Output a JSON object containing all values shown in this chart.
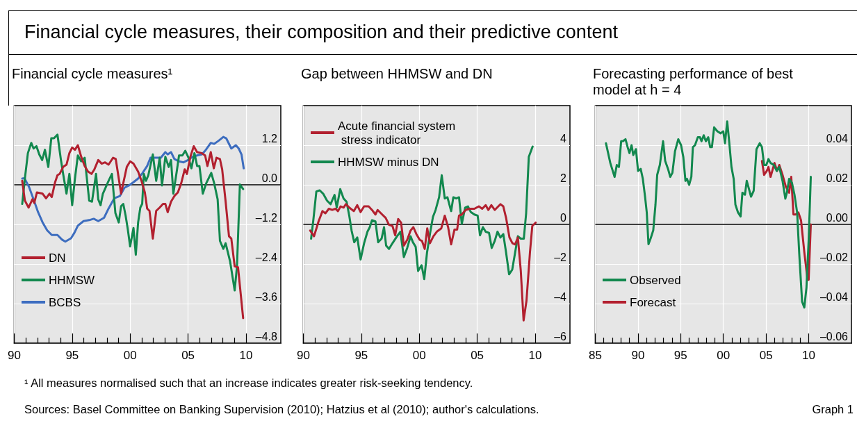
{
  "chart_data": [
    {
      "type": "line",
      "title": "Financial cycle measures, their composition and their predictive content",
      "subtitle": "Financial cycle measures¹",
      "annotations": [
        "¹  All measures normalised such that an increase indicates greater risk-seeking tendency.",
        "Sources: Basel Committee on Banking Supervision (2010); Hatzius et al (2010); author's calculations.",
        "Graph 1"
      ],
      "xlim": [
        1990,
        2013
      ],
      "xticks": [
        {
          "value": 1990,
          "label": "90"
        },
        {
          "value": 1991,
          "label": null
        },
        {
          "value": 1992,
          "label": null
        },
        {
          "value": 1993,
          "label": null
        },
        {
          "value": 1994,
          "label": null
        },
        {
          "value": 1995,
          "label": "95"
        },
        {
          "value": 1996,
          "label": null
        },
        {
          "value": 1997,
          "label": null
        },
        {
          "value": 1998,
          "label": null
        },
        {
          "value": 1999,
          "label": null
        },
        {
          "value": 2000,
          "label": "00"
        },
        {
          "value": 2001,
          "label": null
        },
        {
          "value": 2002,
          "label": null
        },
        {
          "value": 2003,
          "label": null
        },
        {
          "value": 2004,
          "label": null
        },
        {
          "value": 2005,
          "label": "05"
        },
        {
          "value": 2006,
          "label": null
        },
        {
          "value": 2007,
          "label": null
        },
        {
          "value": 2008,
          "label": null
        },
        {
          "value": 2009,
          "label": null
        },
        {
          "value": 2010,
          "label": "10"
        }
      ],
      "ylim": [
        -4.8,
        2.4
      ],
      "yticks": [
        {
          "value": -4.8,
          "label": "–4.8"
        },
        {
          "value": -3.6,
          "label": "–3.6"
        },
        {
          "value": -2.4,
          "label": "–2.4"
        },
        {
          "value": -1.2,
          "label": "–1.2"
        },
        {
          "value": 0,
          "label": "0.0"
        },
        1.2
      ],
      "grid": true,
      "legend": "bottom left",
      "marker": "none",
      "line_style": "solid",
      "ref_lines": [
        {
          "axis": "y",
          "value": 0,
          "color": "#000000"
        }
      ],
      "series": [
        {
          "name": "DN",
          "color": "#b2202f",
          "x": [
            1990.69,
            1990.92,
            1991.24,
            1991.57,
            1991.73,
            1991.96,
            1992.45,
            1992.75,
            1993.04,
            1993.24,
            1993.53,
            1993.73,
            1993.92,
            1994.22,
            1994.51,
            1994.76,
            1995,
            1995.24,
            1995.49,
            1995.78,
            1996.08,
            1996.37,
            1996.67,
            1996.92,
            1997.25,
            1997.55,
            1997.84,
            1998.14,
            1998.53,
            1998.76,
            1999.02,
            1999.22,
            1999.41,
            1999.71,
            2000,
            2000.29,
            2000.69,
            2000.98,
            2001.27,
            2001.47,
            2001.67,
            2001.96,
            2002.25,
            2002.55,
            2002.84,
            2003.04,
            2003.24,
            2003.53,
            2003.82,
            2004.12,
            2004.41,
            2004.71,
            2004.9,
            2005.2,
            2005.49,
            2005.78,
            2006.18,
            2006.47,
            2006.67,
            2006.96,
            2007.22,
            2007.45,
            2007.75,
            2007.94,
            2008.24,
            2008.53,
            2008.73,
            2009.02,
            2009.31,
            2009.75
          ],
          "values": [
            0.12,
            -0.48,
            -0.69,
            -0.44,
            -0.55,
            -0.23,
            -0.27,
            -0.41,
            -0.27,
            -0.37,
            0.08,
            0.29,
            0.33,
            0.54,
            0.61,
            0.96,
            1.13,
            1.06,
            1.2,
            0.85,
            0.57,
            0.4,
            0.33,
            0.47,
            0.75,
            0.64,
            0.68,
            0.61,
            0.82,
            0.78,
            0.19,
            -0.27,
            0.05,
            0.54,
            0.71,
            0.64,
            0.4,
            0.12,
            -0.23,
            -0.72,
            -0.79,
            -1.63,
            -0.79,
            -0.69,
            -0.58,
            -0.58,
            -0.83,
            -0.51,
            -0.34,
            -0.23,
            0.05,
            0.47,
            0.33,
            0.85,
            1.17,
            0.99,
            0.96,
            0.89,
            0.57,
            0.99,
            0.5,
            0.82,
            0.78,
            0.47,
            -0.51,
            -1.56,
            -1.63,
            -2.47,
            -2.5,
            -4.04
          ]
        },
        {
          "name": "HHMSW",
          "color": "#12884e",
          "x": [
            1990.69,
            1990.92,
            1991.18,
            1991.47,
            1991.67,
            1991.92,
            1992.16,
            1992.41,
            1992.65,
            1992.94,
            1993.2,
            1993.43,
            1993.73,
            1994.02,
            1994.22,
            1994.51,
            1994.76,
            1995,
            1995.24,
            1995.49,
            1995.78,
            1996.08,
            1996.47,
            1996.71,
            1997.06,
            1997.25,
            1997.45,
            1997.65,
            1998.14,
            1998.43,
            1998.73,
            1999.02,
            1999.22,
            1999.41,
            1999.61,
            1999.8,
            2000,
            2000.29,
            2000.49,
            2000.69,
            2000.88,
            2001.04,
            2001.18,
            2001.37,
            2001.57,
            2001.96,
            2002.25,
            2002.55,
            2002.75,
            2003.04,
            2003.33,
            2003.53,
            2003.73,
            2004.02,
            2004.22,
            2004.51,
            2004.76,
            2005.04,
            2005.29,
            2005.55,
            2005.78,
            2005.98,
            2006.27,
            2006.57,
            2007,
            2007.25,
            2007.55,
            2007.75,
            2008.04,
            2008.24,
            2008.63,
            2009.02,
            2009.22,
            2009.47,
            2009.75
          ],
          "values": [
            -0.58,
            0.19,
            0.96,
            1.27,
            1.1,
            1.17,
            0.92,
            0.75,
            1.06,
            0.54,
            1.41,
            1.41,
            1.52,
            0.78,
            0.33,
            -0.27,
            0.33,
            -0.62,
            0.19,
            0.89,
            0.71,
            0.82,
            -0.48,
            -0.51,
            0.33,
            -0.44,
            -0.62,
            -0.27,
            0.12,
            0.33,
            -0.86,
            -1.14,
            -0.65,
            -0.58,
            -0.93,
            -1.35,
            -1.87,
            -1.31,
            -2.12,
            -1.14,
            -0.69,
            -0.58,
            0.33,
            0.12,
            0.29,
            0.92,
            0.12,
            0.82,
            -0.02,
            0.85,
            0.54,
            0.75,
            -0.27,
            0.4,
            0.89,
            0.89,
            1.03,
            0.82,
            0.5,
            0.96,
            0.57,
            0.57,
            -0.27,
            0.05,
            0.36,
            0.05,
            -0.44,
            -1.7,
            -1.94,
            -1.77,
            -2.33,
            -3.2,
            -2.47,
            0.01,
            -0.13
          ]
        },
        {
          "name": "BCBS",
          "color": "#3d6dbf",
          "x": [
            1990.69,
            1990.88,
            1991.27,
            1991.67,
            1992.06,
            1992.45,
            1992.84,
            1993.24,
            1993.73,
            1994.12,
            1994.41,
            1994.9,
            1995.2,
            1995.49,
            1995.98,
            1996.47,
            1996.86,
            1997.25,
            1997.75,
            1998.14,
            1998.63,
            1999.12,
            1999.51,
            1999.9,
            2000.29,
            2000.69,
            2001.08,
            2001.47,
            2001.76,
            2002.16,
            2002.65,
            2003.04,
            2003.24,
            2003.53,
            2003.82,
            2004.22,
            2004.61,
            2005,
            2005.39,
            2005.78,
            2006.18,
            2006.47,
            2006.96,
            2007.25,
            2007.65,
            2008.04,
            2008.29,
            2008.73,
            2009.12,
            2009.37,
            2009.61,
            2009.8
          ],
          "values": [
            0.19,
            0.2,
            -0.06,
            -0.44,
            -0.83,
            -1.14,
            -1.38,
            -1.52,
            -1.52,
            -1.66,
            -1.72,
            -1.62,
            -1.45,
            -1.24,
            -1.1,
            -1.07,
            -1.03,
            -1.1,
            -1,
            -0.72,
            -0.41,
            -0.34,
            -0.09,
            -0.02,
            0.08,
            0.19,
            0.36,
            0.57,
            0.82,
            0.82,
            0.82,
            0.99,
            0.92,
            0.99,
            0.78,
            0.71,
            0.68,
            0.75,
            0.85,
            0.89,
            0.92,
            1.03,
            1.27,
            1.24,
            1.34,
            1.45,
            1.41,
            1.1,
            1.2,
            1.1,
            0.92,
            0.5
          ]
        }
      ]
    },
    {
      "type": "line",
      "title": "Gap between HHMSW and DN",
      "xlim": [
        1990,
        2013
      ],
      "xticks": [
        {
          "value": 1990,
          "label": "90"
        },
        {
          "value": 1991,
          "label": null
        },
        {
          "value": 1992,
          "label": null
        },
        {
          "value": 1993,
          "label": null
        },
        {
          "value": 1994,
          "label": null
        },
        {
          "value": 1995,
          "label": "95"
        },
        {
          "value": 1996,
          "label": null
        },
        {
          "value": 1997,
          "label": null
        },
        {
          "value": 1998,
          "label": null
        },
        {
          "value": 1999,
          "label": null
        },
        {
          "value": 2000,
          "label": "00"
        },
        {
          "value": 2001,
          "label": null
        },
        {
          "value": 2002,
          "label": null
        },
        {
          "value": 2003,
          "label": null
        },
        {
          "value": 2004,
          "label": null
        },
        {
          "value": 2005,
          "label": "05"
        },
        {
          "value": 2006,
          "label": null
        },
        {
          "value": 2007,
          "label": null
        },
        {
          "value": 2008,
          "label": null
        },
        {
          "value": 2009,
          "label": null
        },
        {
          "value": 2010,
          "label": "10"
        }
      ],
      "ylim": [
        -6,
        6
      ],
      "yticks": [
        {
          "value": -6,
          "label": "–6"
        },
        {
          "value": -4,
          "label": "–4"
        },
        {
          "value": -2,
          "label": "–2"
        },
        0,
        2,
        4
      ],
      "grid": true,
      "legend": "top left",
      "marker": "none",
      "line_style": "solid",
      "ref_lines": [
        {
          "axis": "y",
          "value": 0,
          "color": "#000000"
        }
      ],
      "series": [
        {
          "name": "Acute financial system stress indicator",
          "color": "#b2202f",
          "x": [
            1990.59,
            1990.92,
            1991.31,
            1991.65,
            1991.9,
            1992.2,
            1992.49,
            1992.78,
            1992.98,
            1993.22,
            1993.47,
            1993.67,
            1993.96,
            1994.35,
            1994.65,
            1994.94,
            1995.24,
            1995.63,
            1995.92,
            1996.22,
            1996.41,
            1996.8,
            1997.1,
            1997.39,
            1997.69,
            1997.92,
            1998.18,
            1998.43,
            1998.67,
            1998.96,
            1999.25,
            1999.49,
            1999.75,
            2000.04,
            2000.24,
            2000.47,
            2000.69,
            2000.92,
            2001.22,
            2001.51,
            2001.9,
            2002.2,
            2002.49,
            2002.75,
            2003.04,
            2003.27,
            2003.43,
            2003.67,
            2004,
            2004.35,
            2004.75,
            2005.14,
            2005.43,
            2005.73,
            2005.96,
            2006.22,
            2006.51,
            2007,
            2007.25,
            2007.49,
            2007.78,
            2008.04,
            2008.27,
            2008.51,
            2008.76,
            2009,
            2009.25,
            2009.55,
            2009.75,
            2010.04
          ],
          "values": [
            -0.31,
            -0.6,
            0.15,
            0.67,
            0.56,
            0.79,
            0.73,
            0.79,
            0.67,
            0.91,
            0.85,
            1.02,
            0.85,
            0.67,
            0.97,
            0.62,
            0.91,
            0.91,
            0.73,
            0.5,
            0.73,
            0.5,
            0.33,
            -0.02,
            -0.08,
            -0.55,
            0.27,
            0.09,
            -1.07,
            -0.78,
            -0.31,
            -0.14,
            -0.49,
            -0.78,
            -0.84,
            -1.24,
            -0.2,
            -0.95,
            -0.6,
            -0.37,
            -0.2,
            0.44,
            -0.14,
            -1.01,
            -0.26,
            -0.26,
            0.44,
            0.5,
            0.73,
            0.79,
            0.79,
            0.91,
            0.79,
            0.97,
            0.73,
            0.97,
            0.73,
            1.02,
            0.91,
            0.33,
            -0.66,
            -0.95,
            -1.01,
            -0.66,
            -2.35,
            -4.85,
            -3.86,
            -1.42,
            -0.08,
            0.09
          ]
        },
        {
          "name": "HHMSW minus DN",
          "color": "#12884e",
          "x": [
            1990.67,
            1990.86,
            1991.12,
            1991.41,
            1991.71,
            1992.04,
            1992.35,
            1992.69,
            1992.88,
            1993.18,
            1993.47,
            1993.73,
            1993.96,
            1994.16,
            1994.39,
            1994.65,
            1994.94,
            1995.24,
            1995.53,
            1995.73,
            1995.92,
            1996.22,
            1996.45,
            1996.75,
            1996.96,
            1997.14,
            1997.39,
            1997.69,
            1998.08,
            1998.37,
            1998.67,
            1998.96,
            1999.25,
            1999.45,
            1999.69,
            1999.9,
            2000.2,
            2000.43,
            2000.67,
            2000.92,
            2001.18,
            2001.41,
            2001.71,
            2001.94,
            2002.2,
            2002.43,
            2002.75,
            2002.94,
            2003.18,
            2003.43,
            2003.67,
            2003.96,
            2004.2,
            2004.45,
            2004.75,
            2005.04,
            2005.24,
            2005.49,
            2005.73,
            2006.02,
            2006.25,
            2006.51,
            2006.75,
            2007,
            2007.25,
            2007.49,
            2007.75,
            2008.02,
            2008.27,
            2008.51,
            2008.76,
            2009.02,
            2009.22,
            2009.45,
            2009.78
          ],
          "values": [
            -0.72,
            0.21,
            1.66,
            1.72,
            1.55,
            1.2,
            1.02,
            1.49,
            0.85,
            1.78,
            1.31,
            1.14,
            0.44,
            -0.31,
            -0.9,
            -0.66,
            -1.77,
            -0.95,
            -0.37,
            -0.14,
            0.21,
            0.15,
            -0.9,
            -0.72,
            -0.14,
            -1.07,
            -1.24,
            -0.95,
            -0.6,
            -0.37,
            -1.65,
            -1.19,
            -0.6,
            -0.9,
            -1.13,
            -2.35,
            -2.06,
            -2.76,
            -1.42,
            -0.49,
            0.38,
            0.73,
            1.37,
            2.48,
            1.31,
            1.37,
            0.67,
            1.37,
            1.31,
            1.37,
            0.03,
            0.85,
            0.91,
            0.62,
            0.5,
            0.44,
            -0.55,
            -0.14,
            -0.37,
            -0.43,
            -1.19,
            -0.84,
            -0.37,
            -0.66,
            -0.49,
            -1.42,
            -2.52,
            -2.29,
            -1.42,
            -0.6,
            -0.72,
            -0.72,
            0.56,
            3.41,
            3.93
          ]
        }
      ]
    },
    {
      "type": "line",
      "title": "Forecasting performance of best model at h = 4",
      "xlim": [
        1985,
        2015
      ],
      "xticks": [
        {
          "value": 1985,
          "label": "85"
        },
        {
          "value": 1986,
          "label": null
        },
        {
          "value": 1987,
          "label": null
        },
        {
          "value": 1988,
          "label": null
        },
        {
          "value": 1989,
          "label": null
        },
        {
          "value": 1990,
          "label": "90"
        },
        {
          "value": 1991,
          "label": null
        },
        {
          "value": 1992,
          "label": null
        },
        {
          "value": 1993,
          "label": null
        },
        {
          "value": 1994,
          "label": null
        },
        {
          "value": 1995,
          "label": "95"
        },
        {
          "value": 1996,
          "label": null
        },
        {
          "value": 1997,
          "label": null
        },
        {
          "value": 1998,
          "label": null
        },
        {
          "value": 1999,
          "label": null
        },
        {
          "value": 2000,
          "label": "00"
        },
        {
          "value": 2001,
          "label": null
        },
        {
          "value": 2002,
          "label": null
        },
        {
          "value": 2003,
          "label": null
        },
        {
          "value": 2004,
          "label": null
        },
        {
          "value": 2005,
          "label": "05"
        },
        {
          "value": 2006,
          "label": null
        },
        {
          "value": 2007,
          "label": null
        },
        {
          "value": 2008,
          "label": null
        },
        {
          "value": 2009,
          "label": null
        },
        {
          "value": 2010,
          "label": "10"
        }
      ],
      "ylim": [
        -0.06,
        0.06
      ],
      "yticks": [
        {
          "value": -0.06,
          "label": "–0.06"
        },
        {
          "value": -0.04,
          "label": "–0.04"
        },
        {
          "value": -0.02,
          "label": "–0.02"
        },
        {
          "value": 0,
          "label": "0.00"
        },
        0.02,
        0.04
      ],
      "grid": true,
      "legend": "bottom left",
      "marker": "none",
      "line_style": "solid",
      "ref_lines": [
        {
          "axis": "y",
          "value": 0,
          "color": "#000000"
        }
      ],
      "series": [
        {
          "name": "Observed",
          "color": "#12884e",
          "x": [
            1986.25,
            1986.76,
            1987.26,
            1987.52,
            1987.77,
            1988.03,
            1988.23,
            1988.54,
            1988.79,
            1989,
            1989.25,
            1989.45,
            1989.76,
            1990.01,
            1990.32,
            1990.57,
            1990.83,
            1991.03,
            1991.23,
            1991.49,
            1991.79,
            1992.05,
            1992.25,
            1992.56,
            1992.94,
            1993.19,
            1993.52,
            1993.78,
            1994.03,
            1994.34,
            1994.72,
            1995.05,
            1995.31,
            1995.56,
            1995.74,
            1995.99,
            1996.25,
            1996.43,
            1996.68,
            1997.01,
            1997.26,
            1997.44,
            1997.7,
            1997.95,
            1998.23,
            1998.46,
            1998.66,
            1998.92,
            1999.3,
            1999.68,
            1999.99,
            2000.19,
            2000.45,
            2000.7,
            2000.95,
            2001.21,
            2001.41,
            2001.72,
            2002.02,
            2002.23,
            2002.53,
            2002.74,
            2002.99,
            2003.24,
            2003.55,
            2003.88,
            2004.26,
            2004.52,
            2004.77,
            2005.03,
            2005.28,
            2005.53,
            2005.92,
            2006.25,
            2006.55,
            2006.93,
            2007.26,
            2007.44,
            2007.7,
            2008.03,
            2008.33,
            2008.64,
            2008.89,
            2009.22,
            2009.48,
            2009.73,
            2009.99,
            2010.24
          ],
          "values": [
            0.041,
            0.031,
            0.024,
            0.03,
            0.029,
            0.042,
            0.042,
            0.043,
            0.039,
            0.036,
            0.04,
            0.035,
            0.038,
            0.027,
            0.028,
            0.023,
            0.014,
            0.006,
            -0.01,
            -0.007,
            -0.003,
            0.01,
            0.025,
            0.03,
            0.042,
            0.032,
            0.028,
            0.024,
            0.026,
            0.037,
            0.043,
            0.04,
            0.034,
            0.022,
            0.023,
            0.02,
            0.024,
            0.039,
            0.04,
            0.044,
            0.044,
            0.042,
            0.045,
            0.042,
            0.044,
            0.039,
            0.039,
            0.049,
            0.047,
            0.046,
            0.047,
            0.041,
            0.052,
            0.041,
            0.029,
            0.023,
            0.01,
            0.006,
            0.004,
            0.016,
            0.015,
            0.022,
            0.018,
            0.014,
            0.017,
            0.038,
            0.041,
            0.039,
            0.03,
            0.03,
            0.033,
            0.031,
            0.03,
            0.027,
            0.029,
            0.022,
            0.013,
            0.016,
            0.023,
            0.021,
            0.015,
            0.006,
            -0.015,
            -0.039,
            -0.042,
            -0.032,
            -0.008,
            0.024
          ]
        },
        {
          "name": "Forecast",
          "color": "#b2202f",
          "x": [
            2004.52,
            2004.77,
            2005.08,
            2005.28,
            2005.53,
            2005.99,
            2006.3,
            2006.55,
            2006.93,
            2007.32,
            2007.7,
            2007.95,
            2008.21,
            2008.46,
            2008.79,
            2009.1,
            2009.48,
            2009.86,
            2009.99,
            2010.24
          ],
          "values": [
            0.032,
            0.025,
            0.027,
            0.029,
            0.024,
            0.031,
            0.027,
            0.03,
            0.025,
            0.019,
            0.016,
            0.024,
            0.005,
            0.005,
            0.006,
            0.002,
            -0.014,
            -0.028,
            -0.028,
            0
          ]
        }
      ]
    }
  ]
}
